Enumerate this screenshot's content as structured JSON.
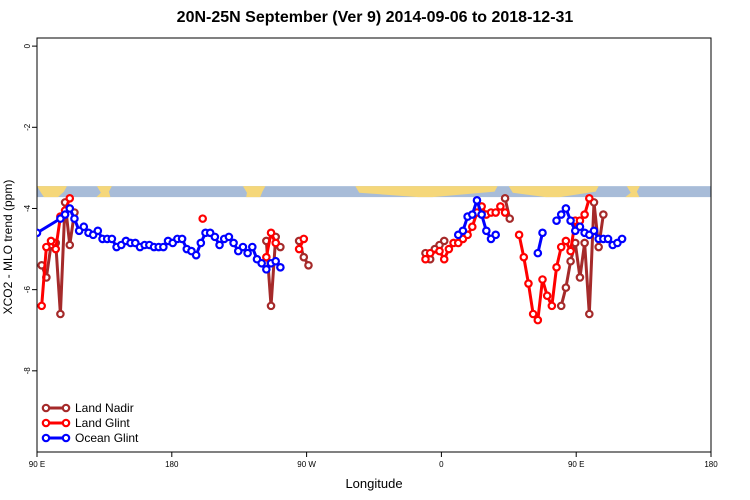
{
  "chart_data": {
    "type": "line",
    "title": "20N-25N September (Ver 9)   2014-09-06 to 2018-12-31",
    "xlabel": "Longitude",
    "ylabel": "XCO2 - MLO trend (ppm)",
    "xlim": [
      -90,
      270
    ],
    "ylim": [
      -10,
      0.2
    ],
    "x_ticks": [
      {
        "value": -90,
        "label": "90 E"
      },
      {
        "value": -18,
        "label": "180"
      },
      {
        "value": 54,
        "label": "90 W"
      },
      {
        "value": 126,
        "label": "0"
      },
      {
        "value": 198,
        "label": "90 E"
      },
      {
        "value": 270,
        "label": "180"
      }
    ],
    "y_ticks": [
      {
        "value": 0,
        "label": "0"
      },
      {
        "value": -2,
        "label": "-2"
      },
      {
        "value": -4,
        "label": "-4"
      },
      {
        "value": -6,
        "label": "-6"
      },
      {
        "value": -8,
        "label": "-8"
      }
    ],
    "grid": false,
    "legend_position": "bottom-left",
    "map_strip": {
      "y_top": -3.45,
      "y_bottom": -3.72,
      "ocean_color": "#a8bcd8",
      "land_color": "#f5d77a"
    },
    "series": [
      {
        "name": "Land Nadir",
        "color": "#a52a2a",
        "segments": [
          [
            [
              -87.5,
              -5.4
            ],
            [
              -85,
              -5.7
            ],
            [
              -82.5,
              -4.9
            ],
            [
              -80,
              -4.85
            ],
            [
              -77.5,
              -6.6
            ],
            [
              -75,
              -3.85
            ],
            [
              -72.5,
              -4.9
            ],
            [
              -70,
              -4.1
            ]
          ],
          [
            [
              32.5,
              -4.8
            ],
            [
              35,
              -6.4
            ],
            [
              37.5,
              -4.7
            ],
            [
              40,
              -4.95
            ]
          ],
          [
            [
              50,
              -4.8
            ],
            [
              52.5,
              -5.2
            ],
            [
              55,
              -5.4
            ]
          ],
          [
            [
              117.5,
              -5.1
            ],
            [
              120,
              -5.25
            ],
            [
              122.5,
              -5.0
            ],
            [
              125,
              -4.9
            ],
            [
              127.5,
              -4.8
            ]
          ],
          [
            [
              160,
              -3.75
            ],
            [
              162.5,
              -4.25
            ]
          ],
          [
            [
              190,
              -6.4
            ],
            [
              192.5,
              -5.95
            ],
            [
              195,
              -5.3
            ],
            [
              197.5,
              -4.85
            ],
            [
              200,
              -5.7
            ],
            [
              202.5,
              -4.85
            ],
            [
              205,
              -6.6
            ],
            [
              207.5,
              -3.85
            ],
            [
              210,
              -4.95
            ],
            [
              212.5,
              -4.15
            ]
          ]
        ]
      },
      {
        "name": "Land Glint",
        "color": "#ff0000",
        "segments": [
          [
            [
              -87.5,
              -6.4
            ],
            [
              -85,
              -4.95
            ],
            [
              -82.5,
              -4.8
            ],
            [
              -80,
              -5.0
            ],
            [
              -77.5,
              -4.2
            ],
            [
              -75,
              -4.05
            ],
            [
              -72.5,
              -3.75
            ]
          ],
          [
            [
              -1.5,
              -4.25
            ]
          ],
          [
            [
              32.5,
              -5.2
            ],
            [
              35,
              -4.6
            ],
            [
              37.5,
              -4.85
            ]
          ],
          [
            [
              50,
              -5.0
            ],
            [
              52.5,
              -4.75
            ]
          ],
          [
            [
              117.5,
              -5.25
            ],
            [
              120,
              -5.1
            ],
            [
              125,
              -5.05
            ],
            [
              127.5,
              -5.25
            ],
            [
              130,
              -5.0
            ],
            [
              132.5,
              -4.85
            ],
            [
              135,
              -4.85
            ],
            [
              137.5,
              -4.75
            ],
            [
              140,
              -4.65
            ],
            [
              142.5,
              -4.45
            ],
            [
              145,
              -4.1
            ],
            [
              147.5,
              -3.95
            ],
            [
              150,
              -4.15
            ],
            [
              152.5,
              -4.1
            ],
            [
              155,
              -4.1
            ],
            [
              157.5,
              -3.95
            ],
            [
              160,
              -4.1
            ]
          ],
          [
            [
              167.5,
              -4.65
            ],
            [
              170,
              -5.2
            ],
            [
              172.5,
              -5.85
            ],
            [
              175,
              -6.6
            ],
            [
              177.5,
              -6.75
            ],
            [
              180,
              -5.75
            ],
            [
              182.5,
              -6.15
            ],
            [
              185,
              -6.4
            ],
            [
              187.5,
              -5.45
            ],
            [
              190,
              -4.95
            ],
            [
              192.5,
              -4.8
            ],
            [
              195,
              -5.05
            ],
            [
              197.5,
              -4.3
            ],
            [
              200,
              -4.3
            ],
            [
              202.5,
              -4.15
            ],
            [
              205,
              -3.75
            ]
          ]
        ]
      },
      {
        "name": "Ocean Glint",
        "color": "#0000ff",
        "segments": [
          [
            [
              -90,
              -4.6
            ],
            [
              -77.5,
              -4.25
            ],
            [
              -75,
              -4.15
            ],
            [
              -72.5,
              -4.0
            ],
            [
              -70,
              -4.25
            ],
            [
              -67.5,
              -4.55
            ],
            [
              -65,
              -4.45
            ],
            [
              -62.5,
              -4.6
            ],
            [
              -60,
              -4.65
            ],
            [
              -57.5,
              -4.55
            ],
            [
              -55,
              -4.75
            ],
            [
              -52.5,
              -4.75
            ],
            [
              -50,
              -4.75
            ],
            [
              -47.5,
              -4.95
            ],
            [
              -45,
              -4.9
            ],
            [
              -42.5,
              -4.8
            ],
            [
              -40,
              -4.85
            ],
            [
              -37.5,
              -4.85
            ],
            [
              -35,
              -4.95
            ],
            [
              -32.5,
              -4.9
            ],
            [
              -30,
              -4.9
            ],
            [
              -27.5,
              -4.95
            ],
            [
              -25,
              -4.95
            ],
            [
              -22.5,
              -4.95
            ],
            [
              -20,
              -4.8
            ],
            [
              -17.5,
              -4.85
            ],
            [
              -15,
              -4.75
            ],
            [
              -12.5,
              -4.75
            ],
            [
              -10,
              -5.0
            ],
            [
              -7.5,
              -5.05
            ],
            [
              -5,
              -5.15
            ],
            [
              -2.5,
              -4.85
            ],
            [
              0,
              -4.6
            ],
            [
              2.5,
              -4.6
            ],
            [
              5,
              -4.7
            ],
            [
              7.5,
              -4.9
            ],
            [
              10,
              -4.75
            ],
            [
              12.5,
              -4.7
            ],
            [
              15,
              -4.85
            ],
            [
              17.5,
              -5.05
            ],
            [
              20,
              -4.95
            ],
            [
              22.5,
              -5.1
            ],
            [
              25,
              -4.95
            ],
            [
              27.5,
              -5.25
            ],
            [
              30,
              -5.35
            ],
            [
              32.5,
              -5.5
            ],
            [
              35,
              -5.35
            ],
            [
              37.5,
              -5.3
            ],
            [
              40,
              -5.45
            ]
          ],
          [
            [
              135,
              -4.65
            ],
            [
              137.5,
              -4.55
            ],
            [
              140,
              -4.2
            ],
            [
              142.5,
              -4.15
            ],
            [
              145,
              -3.8
            ],
            [
              147.5,
              -4.15
            ],
            [
              150,
              -4.55
            ],
            [
              152.5,
              -4.75
            ],
            [
              155,
              -4.65
            ]
          ],
          [
            [
              177.5,
              -5.1
            ],
            [
              180,
              -4.6
            ]
          ],
          [
            [
              187.5,
              -4.3
            ],
            [
              190,
              -4.15
            ],
            [
              192.5,
              -4.0
            ],
            [
              195,
              -4.3
            ],
            [
              197.5,
              -4.55
            ],
            [
              200,
              -4.45
            ],
            [
              202.5,
              -4.6
            ],
            [
              205,
              -4.65
            ],
            [
              207.5,
              -4.55
            ],
            [
              210,
              -4.75
            ],
            [
              212.5,
              -4.75
            ],
            [
              215,
              -4.75
            ],
            [
              217.5,
              -4.9
            ],
            [
              220,
              -4.85
            ],
            [
              222.5,
              -4.75
            ]
          ]
        ]
      }
    ]
  }
}
